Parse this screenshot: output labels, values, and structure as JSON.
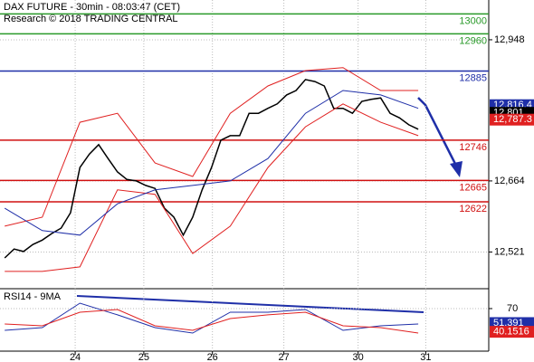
{
  "chart_data": {
    "type": "line",
    "title": "DAX FUTURE - 30min - 08:03:47 (CET)",
    "subtitle": "Research © 2018 TRADING CENTRAL",
    "grid": true,
    "xlim": [
      -0.5,
      51.5
    ],
    "xticks": [
      {
        "value": 7.5,
        "label": "24"
      },
      {
        "value": 14.8,
        "label": "25"
      },
      {
        "value": 22.1,
        "label": "26"
      },
      {
        "value": 29.7,
        "label": "27"
      },
      {
        "value": 37.6,
        "label": "30"
      },
      {
        "value": 44.8,
        "label": "31"
      }
    ],
    "ylim": [
      12449,
      13028
    ],
    "yticks": [
      {
        "value": 12948,
        "label": "12,948"
      },
      {
        "value": 12664,
        "label": "12,664"
      },
      {
        "value": 12521,
        "label": "12,521"
      }
    ],
    "x": [
      0,
      1,
      2,
      3,
      4,
      5,
      6,
      7,
      8,
      9,
      10,
      11,
      12,
      13,
      14,
      15,
      16,
      17,
      18,
      19,
      20,
      21,
      22,
      23,
      24,
      25,
      26,
      27,
      28,
      29,
      30,
      31,
      32,
      33,
      34,
      35,
      36,
      37,
      38,
      39,
      40,
      41,
      42,
      43,
      44
    ],
    "series": [
      {
        "color": "#000000",
        "values": [
          12509,
          12527,
          12522,
          12536,
          12545,
          12558,
          12569,
          12600,
          12691,
          12718,
          12737,
          12709,
          12682,
          12667,
          12664,
          12655,
          12649,
          12609,
          12591,
          12555,
          12591,
          12646,
          12691,
          12746,
          12755,
          12755,
          12800,
          12800,
          12810,
          12819,
          12837,
          12846,
          12868,
          12864,
          12855,
          12810,
          12810,
          12800,
          12824,
          12828,
          12831,
          12800,
          12791,
          12777,
          12768
        ]
      },
      {
        "color": "#e02020",
        "x": [
          0,
          4,
          8,
          12,
          16,
          20,
          24,
          28,
          32,
          36,
          40,
          44
        ],
        "values": [
          12573,
          12591,
          12782,
          12800,
          12700,
          12673,
          12800,
          12855,
          12886,
          12892,
          12846,
          12846
        ]
      },
      {
        "color": "#e02020",
        "x": [
          0,
          4,
          8,
          12,
          16,
          20,
          24,
          28,
          32,
          36,
          40,
          44
        ],
        "values": [
          12482,
          12482,
          12491,
          12646,
          12637,
          12518,
          12573,
          12691,
          12773,
          12819,
          12782,
          12755
        ]
      },
      {
        "color": "#1f2fa8",
        "x": [
          0,
          4,
          8,
          12,
          16,
          20,
          24,
          28,
          32,
          36,
          40,
          44
        ],
        "values": [
          12609,
          12564,
          12555,
          12618,
          12646,
          12655,
          12664,
          12709,
          12800,
          12846,
          12837,
          12810
        ]
      }
    ],
    "levels": [
      {
        "value": 13000,
        "color": "#2a9a2a"
      },
      {
        "value": 12960,
        "color": "#2a9a2a"
      },
      {
        "value": 12885,
        "color": "#1f2fa8"
      },
      {
        "value": 12746,
        "color": "#d01010"
      },
      {
        "value": 12665,
        "color": "#d01010"
      },
      {
        "value": 12622,
        "color": "#d01010"
      }
    ],
    "last_values": [
      {
        "value": 12816.4,
        "label": "12,816.4",
        "color": "#1f2fa8"
      },
      {
        "value": 12801,
        "label": "12,801",
        "color": "#000000"
      },
      {
        "value": 12787.3,
        "label": "12,787.3",
        "color": "#e02020"
      }
    ],
    "rsi": {
      "label": "RSI14 - 9MA",
      "ylim": [
        15.3,
        94.4
      ],
      "yticks": [
        70
      ],
      "x": [
        0,
        4,
        8,
        12,
        16,
        20,
        24,
        28,
        32,
        36,
        40,
        44
      ],
      "series": [
        {
          "color": "#1f2fa8",
          "values": [
            42.1,
            45.6,
            77,
            61.9,
            45.6,
            38.6,
            65.3,
            65.3,
            68.8,
            42.1,
            47.9,
            50.2
          ]
        },
        {
          "color": "#e02020",
          "values": [
            50.2,
            47.9,
            65.3,
            68.8,
            47.9,
            42.1,
            57.2,
            61.9,
            65.3,
            47.9,
            45.6,
            38.6
          ]
        }
      ],
      "last_values": [
        {
          "value": 51.391,
          "color": "#1f2fa8"
        },
        {
          "value": 40.1516,
          "color": "#e02020"
        }
      ]
    }
  }
}
